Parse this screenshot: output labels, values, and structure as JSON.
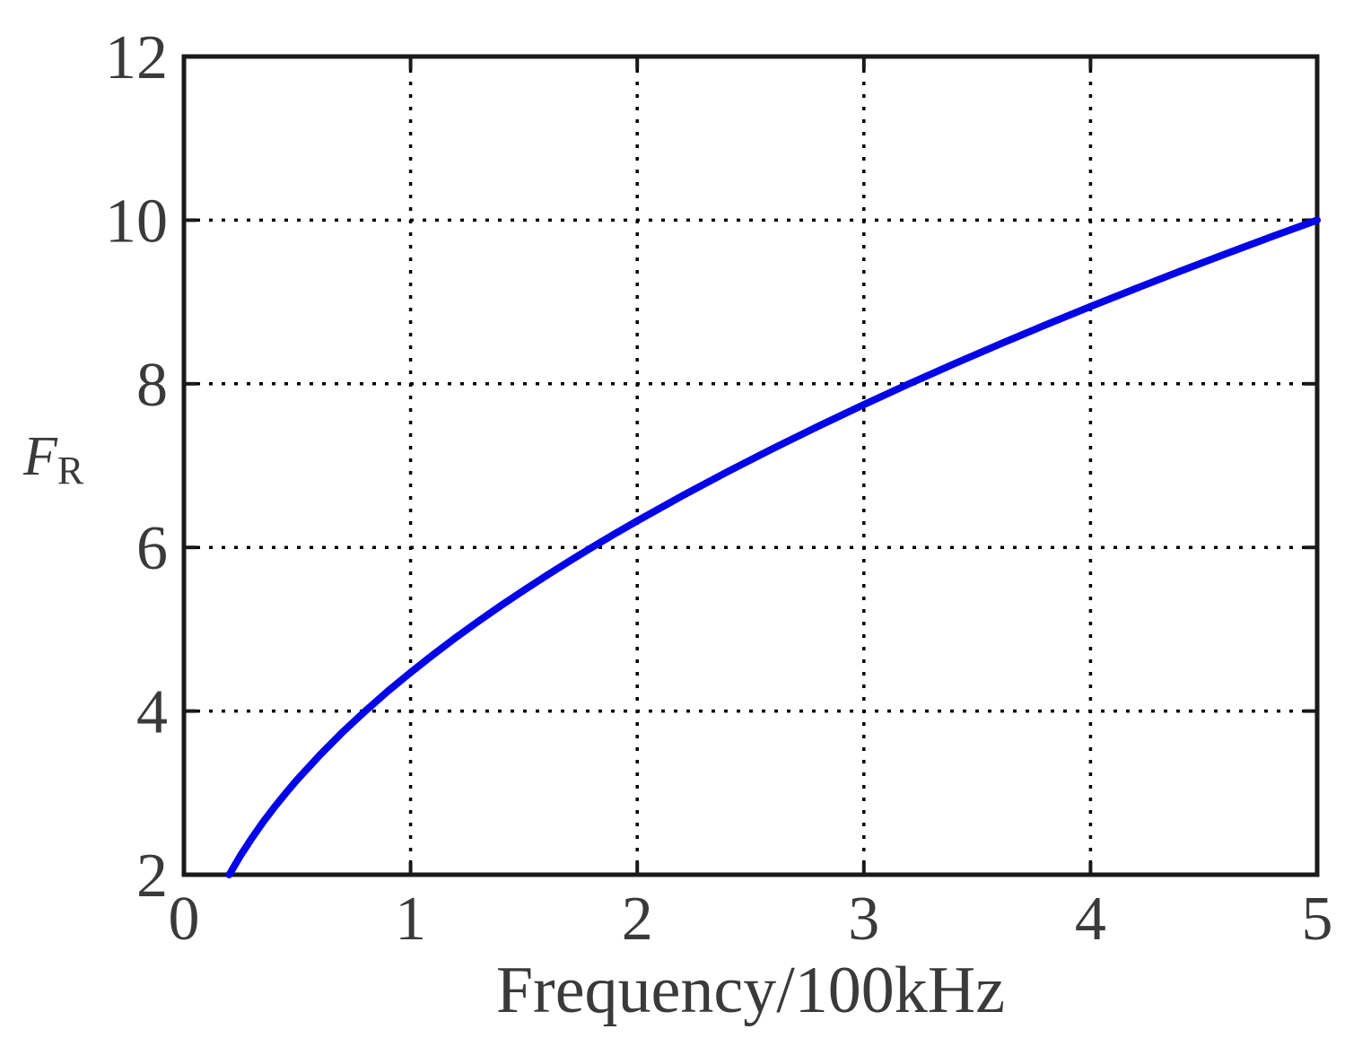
{
  "figure": {
    "background": "#ffffff",
    "axis_color": "#1a1a1a",
    "grid_color": "#000000",
    "tick_label_color": "#3a3a3a",
    "curve_color": "#0404e8"
  },
  "labels": {
    "y_main": "F",
    "y_sub": "R",
    "x": "Frequency/100kHz"
  },
  "chart_data": {
    "type": "line",
    "title": "",
    "xlabel": "Frequency/100kHz",
    "ylabel": "F_R",
    "xlim": [
      0,
      5
    ],
    "ylim": [
      2,
      12
    ],
    "xticks": [
      0,
      1,
      2,
      3,
      4,
      5
    ],
    "yticks": [
      2,
      4,
      6,
      8,
      10,
      12
    ],
    "grid": "dotted black, vertical at x=1..4, horizontal at y=4..10, boxed axes",
    "legend": "none",
    "series": [
      {
        "name": "FR",
        "color": "#0404e8",
        "x": [
          0.2,
          0.25,
          0.3,
          0.35,
          0.4,
          0.45,
          0.5,
          0.6,
          0.7,
          0.8,
          0.9,
          1.0,
          1.1,
          1.2,
          1.3,
          1.4,
          1.5,
          1.6,
          1.7,
          1.8,
          1.9,
          2.0,
          2.2,
          2.4,
          2.6,
          2.8,
          3.0,
          3.2,
          3.4,
          3.6,
          3.8,
          4.0,
          4.2,
          4.4,
          4.6,
          4.8,
          5.0
        ],
        "y": [
          2.0,
          2.236,
          2.449,
          2.646,
          2.828,
          3.0,
          3.162,
          3.464,
          3.742,
          4.0,
          4.243,
          4.472,
          4.69,
          4.899,
          5.099,
          5.292,
          5.477,
          5.657,
          5.831,
          6.0,
          6.164,
          6.325,
          6.633,
          6.928,
          7.211,
          7.483,
          7.746,
          8.0,
          8.246,
          8.485,
          8.718,
          8.944,
          9.165,
          9.381,
          9.592,
          9.798,
          10.0
        ]
      }
    ]
  }
}
